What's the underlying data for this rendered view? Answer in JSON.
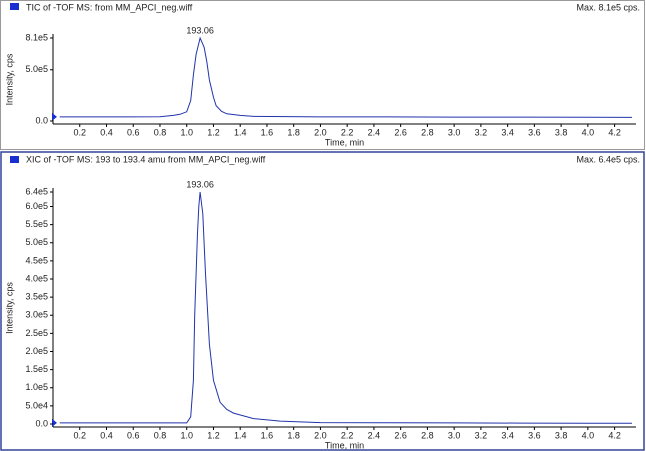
{
  "chart_data": [
    {
      "type": "line",
      "title": "TIC of -TOF MS: from MM_APCI_neg.wiff",
      "max_label": "Max. 8.1e5 cps.",
      "x_label": "Time, min",
      "y_label": "Intensity, cps",
      "annotation": "193.06",
      "color": "#2233aa",
      "x": [
        0.05,
        0.4,
        0.8,
        0.9,
        0.95,
        1.0,
        1.03,
        1.05,
        1.07,
        1.1,
        1.13,
        1.15,
        1.17,
        1.2,
        1.22,
        1.26,
        1.3,
        1.4,
        1.5,
        2.0,
        2.5,
        3.0,
        3.5,
        4.0,
        4.33
      ],
      "values": [
        40000,
        40000,
        42000,
        55000,
        65000,
        90000,
        200000,
        450000,
        650000,
        810000,
        720000,
        580000,
        400000,
        230000,
        150000,
        95000,
        70000,
        55000,
        45000,
        40000,
        40000,
        38000,
        38000,
        36000,
        35000
      ],
      "xlim": [
        0,
        4.36
      ],
      "ylim": [
        0,
        810000
      ],
      "xticks": [
        0.2,
        0.4,
        0.6,
        0.8,
        {
          "value": 1,
          "label": "1.0"
        },
        1.2,
        1.4,
        1.6,
        1.8,
        {
          "value": 2,
          "label": "2.0"
        },
        2.2,
        2.4,
        2.6,
        2.8,
        {
          "value": 3,
          "label": "3.0"
        },
        3.2,
        3.4,
        3.6,
        3.8,
        {
          "value": 4,
          "label": "4.0"
        },
        4.2
      ],
      "yticks": [
        {
          "value": 0,
          "label": "0.0"
        },
        {
          "value": 500000,
          "label": "5.0e5"
        },
        {
          "value": 810000,
          "label": "8.1e5"
        }
      ]
    },
    {
      "type": "line",
      "title": "XIC of -TOF MS: 193 to 193.4 amu from MM_APCI_neg.wiff",
      "max_label": "Max. 6.4e5 cps.",
      "x_label": "Time, min",
      "y_label": "Intensity, cps",
      "annotation": "193.06",
      "color": "#2233aa",
      "x": [
        0.05,
        0.5,
        1.0,
        1.03,
        1.05,
        1.06,
        1.08,
        1.09,
        1.1,
        1.12,
        1.14,
        1.15,
        1.17,
        1.2,
        1.25,
        1.3,
        1.35,
        1.5,
        1.7,
        2.0,
        2.5,
        3.0,
        3.5,
        4.0,
        4.33
      ],
      "values": [
        3000,
        3000,
        3000,
        20000,
        120000,
        300000,
        520000,
        600000,
        640000,
        580000,
        420000,
        350000,
        220000,
        120000,
        60000,
        40000,
        30000,
        15000,
        8000,
        4000,
        3500,
        3000,
        2500,
        2000,
        2000
      ],
      "xlim": [
        0,
        4.36
      ],
      "ylim": [
        0,
        640000
      ],
      "xticks": [
        0.2,
        0.4,
        0.6,
        0.8,
        {
          "value": 1,
          "label": "1.0"
        },
        1.2,
        1.4,
        1.6,
        1.8,
        {
          "value": 2,
          "label": "2.0"
        },
        2.2,
        2.4,
        2.6,
        2.8,
        {
          "value": 3,
          "label": "3.0"
        },
        3.2,
        3.4,
        3.6,
        3.8,
        {
          "value": 4,
          "label": "4.0"
        },
        4.2
      ],
      "yticks": [
        {
          "value": 0,
          "label": "0.0"
        },
        {
          "value": 50000,
          "label": "5.0e4"
        },
        {
          "value": 100000,
          "label": "1.0e5"
        },
        {
          "value": 150000,
          "label": "1.5e5"
        },
        {
          "value": 200000,
          "label": "2.0e5"
        },
        {
          "value": 250000,
          "label": "2.5e5"
        },
        {
          "value": 300000,
          "label": "3.0e5"
        },
        {
          "value": 350000,
          "label": "3.5e5"
        },
        {
          "value": 400000,
          "label": "4.0e5"
        },
        {
          "value": 450000,
          "label": "4.5e5"
        },
        {
          "value": 500000,
          "label": "5.0e5"
        },
        {
          "value": 550000,
          "label": "5.5e5"
        },
        {
          "value": 600000,
          "label": "6.0e5"
        },
        {
          "value": 640000,
          "label": "6.4e5"
        }
      ]
    }
  ]
}
